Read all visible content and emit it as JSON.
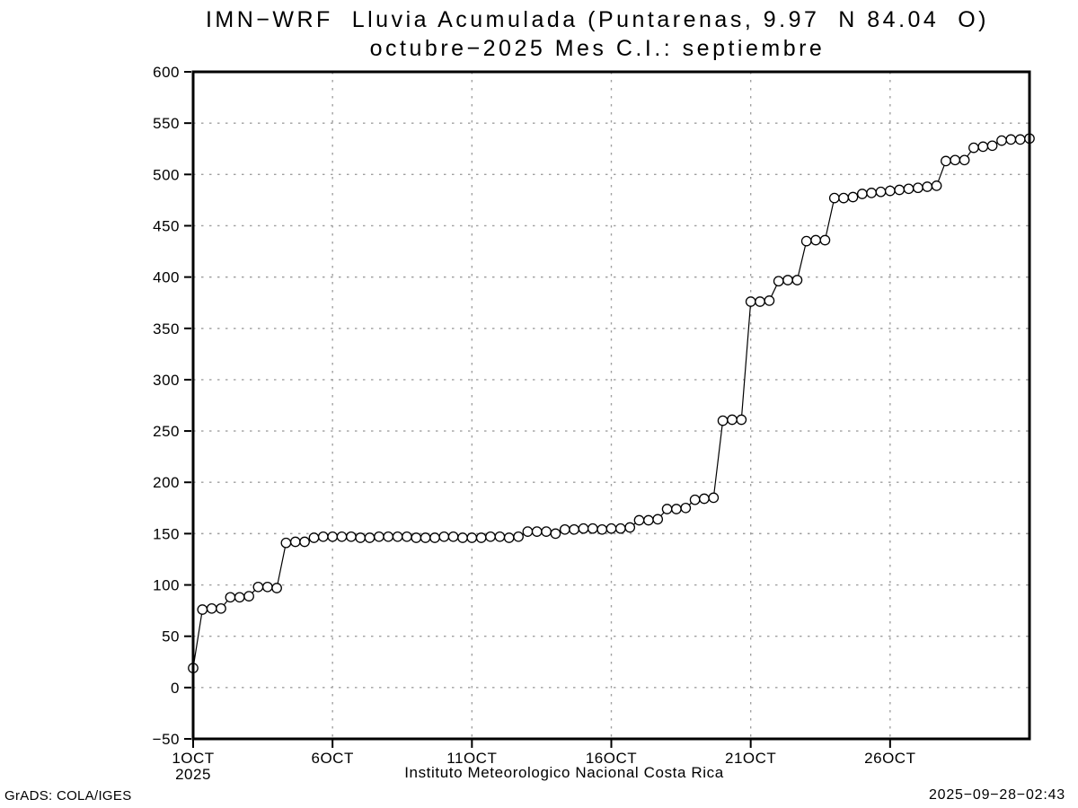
{
  "header": {
    "title_line1": "IMN−WRF  Lluvia Acumulada (Puntarenas, 9.97  N 84.04  O)",
    "title_line2": "octubre−2025 Mes C.I.: septiembre"
  },
  "footer": {
    "left": "GrADS: COLA/IGES",
    "right": "2025−09−28−02:43"
  },
  "chart_data": {
    "type": "line",
    "title": "IMN−WRF Lluvia Acumulada (Puntarenas, 9.97 N 84.04 O)",
    "subtitle": "octubre−2025 Mes C.I.: septiembre",
    "xlabel": "Instituto Meteorologico Nacional Costa Rica",
    "ylabel": "",
    "marker": "open-circle",
    "grid": "dotted",
    "line_color": "#000000",
    "marker_fill": "#ffffff",
    "grid_color": "#9f9f9f",
    "xlim": [
      1,
      31
    ],
    "ylim": [
      -50,
      600
    ],
    "points_per_day": 3,
    "x_ticks": [
      {
        "day": 1,
        "label": "1OCT"
      },
      {
        "day": 6,
        "label": "6OCT"
      },
      {
        "day": 11,
        "label": "11OCT"
      },
      {
        "day": 16,
        "label": "16OCT"
      },
      {
        "day": 21,
        "label": "21OCT"
      },
      {
        "day": 26,
        "label": "26OCT"
      }
    ],
    "x_year_label": "2025",
    "x_gridline_days": [
      6,
      11,
      16,
      21,
      26
    ],
    "y_ticks": [
      {
        "value": -50,
        "label": "−50"
      },
      {
        "value": 0,
        "label": "0"
      },
      {
        "value": 50,
        "label": "50"
      },
      {
        "value": 100,
        "label": "100"
      },
      {
        "value": 150,
        "label": "150"
      },
      {
        "value": 200,
        "label": "200"
      },
      {
        "value": 250,
        "label": "250"
      },
      {
        "value": 300,
        "label": "300"
      },
      {
        "value": 350,
        "label": "350"
      },
      {
        "value": 400,
        "label": "400"
      },
      {
        "value": 450,
        "label": "450"
      },
      {
        "value": 500,
        "label": "500"
      },
      {
        "value": 550,
        "label": "550"
      },
      {
        "value": 600,
        "label": "600"
      }
    ],
    "values": [
      19,
      76,
      77,
      77,
      88,
      88,
      89,
      98,
      98,
      97,
      141,
      142,
      142,
      146,
      147,
      147,
      147,
      147,
      146,
      146,
      147,
      147,
      147,
      147,
      146,
      146,
      146,
      147,
      147,
      146,
      146,
      146,
      147,
      147,
      146,
      147,
      152,
      152,
      152,
      150,
      154,
      154,
      155,
      155,
      154,
      155,
      155,
      156,
      163,
      163,
      164,
      174,
      174,
      175,
      183,
      184,
      185,
      260,
      261,
      261,
      376,
      376,
      377,
      396,
      397,
      397,
      435,
      436,
      436,
      477,
      477,
      478,
      481,
      482,
      483,
      484,
      485,
      486,
      487,
      488,
      489,
      513,
      514,
      514,
      526,
      527,
      528,
      533,
      534,
      534,
      535
    ]
  }
}
